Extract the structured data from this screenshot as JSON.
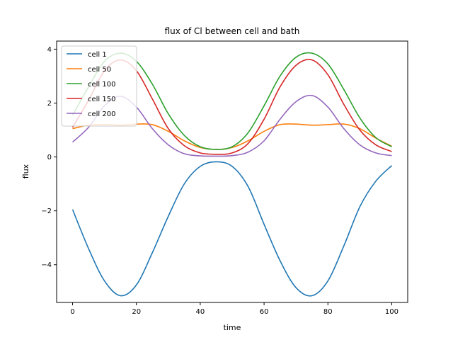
{
  "chart_data": {
    "type": "line",
    "title": "flux of Cl between cell and bath",
    "xlabel": "time",
    "ylabel": "flux",
    "xlim": [
      -5,
      105
    ],
    "ylim": [
      -5.4,
      4.3
    ],
    "xticks": [
      0,
      20,
      40,
      60,
      80,
      100
    ],
    "yticks": [
      -4,
      -2,
      0,
      2,
      4
    ],
    "ytick_labels": [
      "−4",
      "−2",
      "0",
      "2",
      "4"
    ],
    "grid": false,
    "legend_position": "top-left",
    "series": [
      {
        "name": "cell 1",
        "color": "#1f77b4",
        "x": [
          0,
          5,
          10,
          15,
          20,
          25,
          30,
          35,
          40,
          45,
          50,
          55,
          60,
          65,
          70,
          75,
          80,
          85,
          90,
          95,
          100
        ],
        "y": [
          -1.95,
          -3.4,
          -4.6,
          -5.15,
          -4.75,
          -3.55,
          -2.2,
          -1.0,
          -0.35,
          -0.18,
          -0.35,
          -1.1,
          -2.5,
          -3.85,
          -4.85,
          -5.15,
          -4.6,
          -3.3,
          -1.85,
          -0.9,
          -0.32
        ]
      },
      {
        "name": "cell 50",
        "color": "#ff7f0e",
        "x": [
          0,
          5,
          10,
          15,
          20,
          25,
          30,
          35,
          40,
          45,
          50,
          55,
          60,
          65,
          70,
          75,
          80,
          85,
          90,
          95,
          100
        ],
        "y": [
          1.05,
          1.18,
          1.2,
          1.18,
          1.22,
          1.2,
          0.95,
          0.6,
          0.35,
          0.28,
          0.35,
          0.6,
          0.95,
          1.2,
          1.22,
          1.18,
          1.2,
          1.22,
          1.05,
          0.7,
          0.4
        ]
      },
      {
        "name": "cell 100",
        "color": "#2ca02c",
        "x": [
          0,
          5,
          10,
          15,
          20,
          25,
          30,
          35,
          40,
          45,
          50,
          55,
          60,
          65,
          70,
          75,
          80,
          85,
          90,
          95,
          100
        ],
        "y": [
          1.55,
          2.6,
          3.55,
          3.85,
          3.55,
          2.7,
          1.6,
          0.8,
          0.38,
          0.28,
          0.38,
          0.9,
          1.9,
          3.0,
          3.7,
          3.85,
          3.45,
          2.5,
          1.45,
          0.72,
          0.38
        ]
      },
      {
        "name": "cell 150",
        "color": "#d62728",
        "x": [
          0,
          5,
          10,
          15,
          20,
          25,
          30,
          35,
          40,
          45,
          50,
          55,
          60,
          65,
          70,
          75,
          80,
          85,
          90,
          95,
          100
        ],
        "y": [
          1.1,
          2.1,
          3.2,
          3.6,
          3.2,
          2.15,
          1.05,
          0.42,
          0.15,
          0.1,
          0.15,
          0.5,
          1.4,
          2.6,
          3.4,
          3.6,
          3.05,
          1.95,
          1.0,
          0.45,
          0.2
        ]
      },
      {
        "name": "cell 200",
        "color": "#9467bd",
        "x": [
          0,
          5,
          10,
          15,
          20,
          25,
          30,
          35,
          40,
          45,
          50,
          55,
          60,
          65,
          70,
          75,
          80,
          85,
          90,
          95,
          100
        ],
        "y": [
          0.55,
          1.1,
          1.9,
          2.25,
          1.85,
          1.05,
          0.45,
          0.12,
          0.04,
          0.03,
          0.05,
          0.18,
          0.6,
          1.4,
          2.05,
          2.28,
          1.85,
          1.05,
          0.45,
          0.15,
          0.05
        ]
      }
    ]
  }
}
